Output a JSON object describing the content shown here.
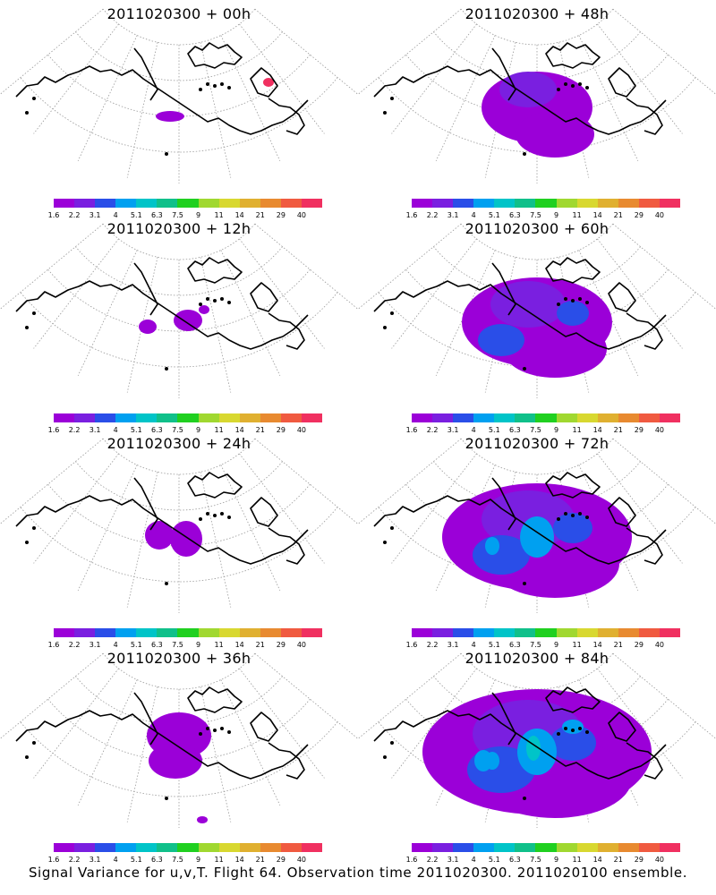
{
  "panels": [
    {
      "title": "2011020300 + 00h",
      "level": 0
    },
    {
      "title": "2011020300 + 48h",
      "level": 4
    },
    {
      "title": "2011020300 + 12h",
      "level": 1
    },
    {
      "title": "2011020300 + 60h",
      "level": 5
    },
    {
      "title": "2011020300 + 24h",
      "level": 2
    },
    {
      "title": "2011020300 + 72h",
      "level": 6
    },
    {
      "title": "2011020300 + 36h",
      "level": 3
    },
    {
      "title": "2011020300 + 84h",
      "level": 7
    }
  ],
  "colorbar": {
    "colors": [
      "#9b00d8",
      "#7a1fe0",
      "#2a4ee8",
      "#00a0f0",
      "#00c4c8",
      "#10c08a",
      "#20d020",
      "#a0d830",
      "#d8d830",
      "#e0b030",
      "#e88a30",
      "#f05a40",
      "#f03060"
    ],
    "labels": [
      "1.6",
      "2.2",
      "3.1",
      "4",
      "5.1",
      "6.3",
      "7.5",
      "9",
      "11",
      "14",
      "21",
      "29",
      "40"
    ]
  },
  "caption": "Signal Variance for u,v,T. Flight 64. Observation time 2011020300. 2011020100 ensemble."
}
